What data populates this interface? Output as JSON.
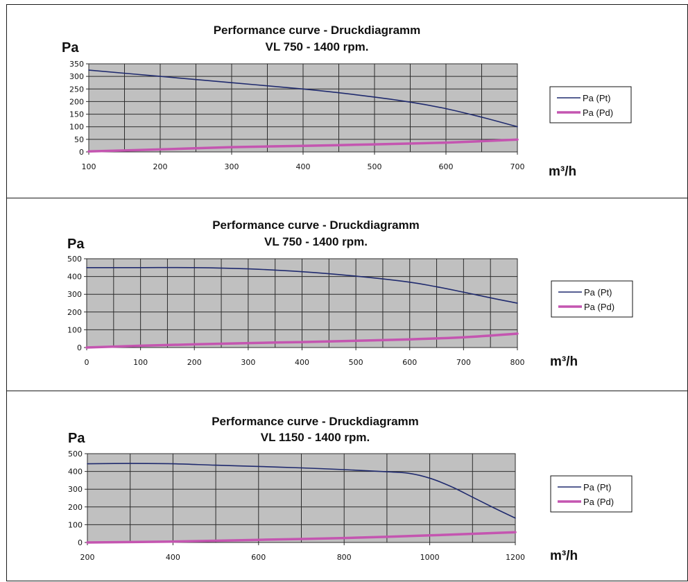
{
  "colors": {
    "plot_bg": "#c0c0c0",
    "grid": "#2b2b2b",
    "pt_line": "#1f2a6e",
    "pd_line": "#c455b0"
  },
  "chart_data": [
    {
      "type": "line",
      "title": "Performance curve - Druckdiagramm",
      "subtitle": "VL 750 - 1400 rpm.",
      "ylabel": "Pa",
      "xlabel": "m³/h",
      "xlim": [
        100,
        700
      ],
      "ylim": [
        0,
        350
      ],
      "xticks": [
        100,
        200,
        300,
        400,
        500,
        600,
        700
      ],
      "yticks": [
        0,
        50,
        100,
        150,
        200,
        250,
        300,
        350
      ],
      "x_gridlines": 12,
      "grid": true,
      "legend_position": "right",
      "series": [
        {
          "name": "Pa (Pt)",
          "x": [
            100,
            200,
            300,
            400,
            450,
            500,
            550,
            600,
            650,
            700
          ],
          "values": [
            325,
            300,
            275,
            250,
            235,
            218,
            198,
            172,
            138,
            100
          ]
        },
        {
          "name": "Pa (Pd)",
          "x": [
            100,
            200,
            300,
            400,
            500,
            600,
            700
          ],
          "values": [
            2,
            10,
            19,
            24,
            30,
            37,
            49
          ]
        }
      ]
    },
    {
      "type": "line",
      "title": "Performance curve - Druckdiagramm",
      "subtitle": "VL 750 - 1400 rpm.",
      "ylabel": "Pa",
      "xlabel": "m³/h",
      "xlim": [
        0,
        800
      ],
      "ylim": [
        0,
        500
      ],
      "xticks": [
        0,
        100,
        200,
        300,
        400,
        500,
        600,
        700,
        800
      ],
      "yticks": [
        0,
        100,
        200,
        300,
        400,
        500
      ],
      "x_gridlines": 16,
      "grid": true,
      "legend_position": "right",
      "series": [
        {
          "name": "Pa (Pt)",
          "x": [
            0,
            100,
            200,
            300,
            400,
            500,
            600,
            650,
            700,
            750,
            800
          ],
          "values": [
            450,
            450,
            450,
            443,
            427,
            402,
            368,
            342,
            312,
            280,
            250
          ]
        },
        {
          "name": "Pa (Pd)",
          "x": [
            0,
            100,
            200,
            300,
            400,
            500,
            600,
            700,
            800
          ],
          "values": [
            0,
            10,
            18,
            25,
            31,
            38,
            46,
            58,
            78
          ]
        }
      ]
    },
    {
      "type": "line",
      "title": "Performance curve - Druckdiagramm",
      "subtitle": "VL 1150 - 1400 rpm.",
      "ylabel": "Pa",
      "xlabel": "m³/h",
      "xlim": [
        200,
        1200
      ],
      "ylim": [
        0,
        500
      ],
      "xticks": [
        200,
        400,
        600,
        800,
        1000,
        1200
      ],
      "yticks": [
        0,
        100,
        200,
        300,
        400,
        500
      ],
      "x_gridlines": 10,
      "grid": true,
      "legend_position": "right",
      "series": [
        {
          "name": "Pa (Pt)",
          "x": [
            200,
            300,
            400,
            500,
            600,
            700,
            800,
            900,
            950,
            1000,
            1050,
            1100,
            1150,
            1200
          ],
          "values": [
            443,
            445,
            443,
            435,
            428,
            420,
            410,
            398,
            390,
            362,
            315,
            255,
            195,
            137
          ]
        },
        {
          "name": "Pa (Pd)",
          "x": [
            200,
            400,
            600,
            800,
            1000,
            1200
          ],
          "values": [
            0,
            5,
            15,
            25,
            40,
            58
          ]
        }
      ]
    }
  ]
}
